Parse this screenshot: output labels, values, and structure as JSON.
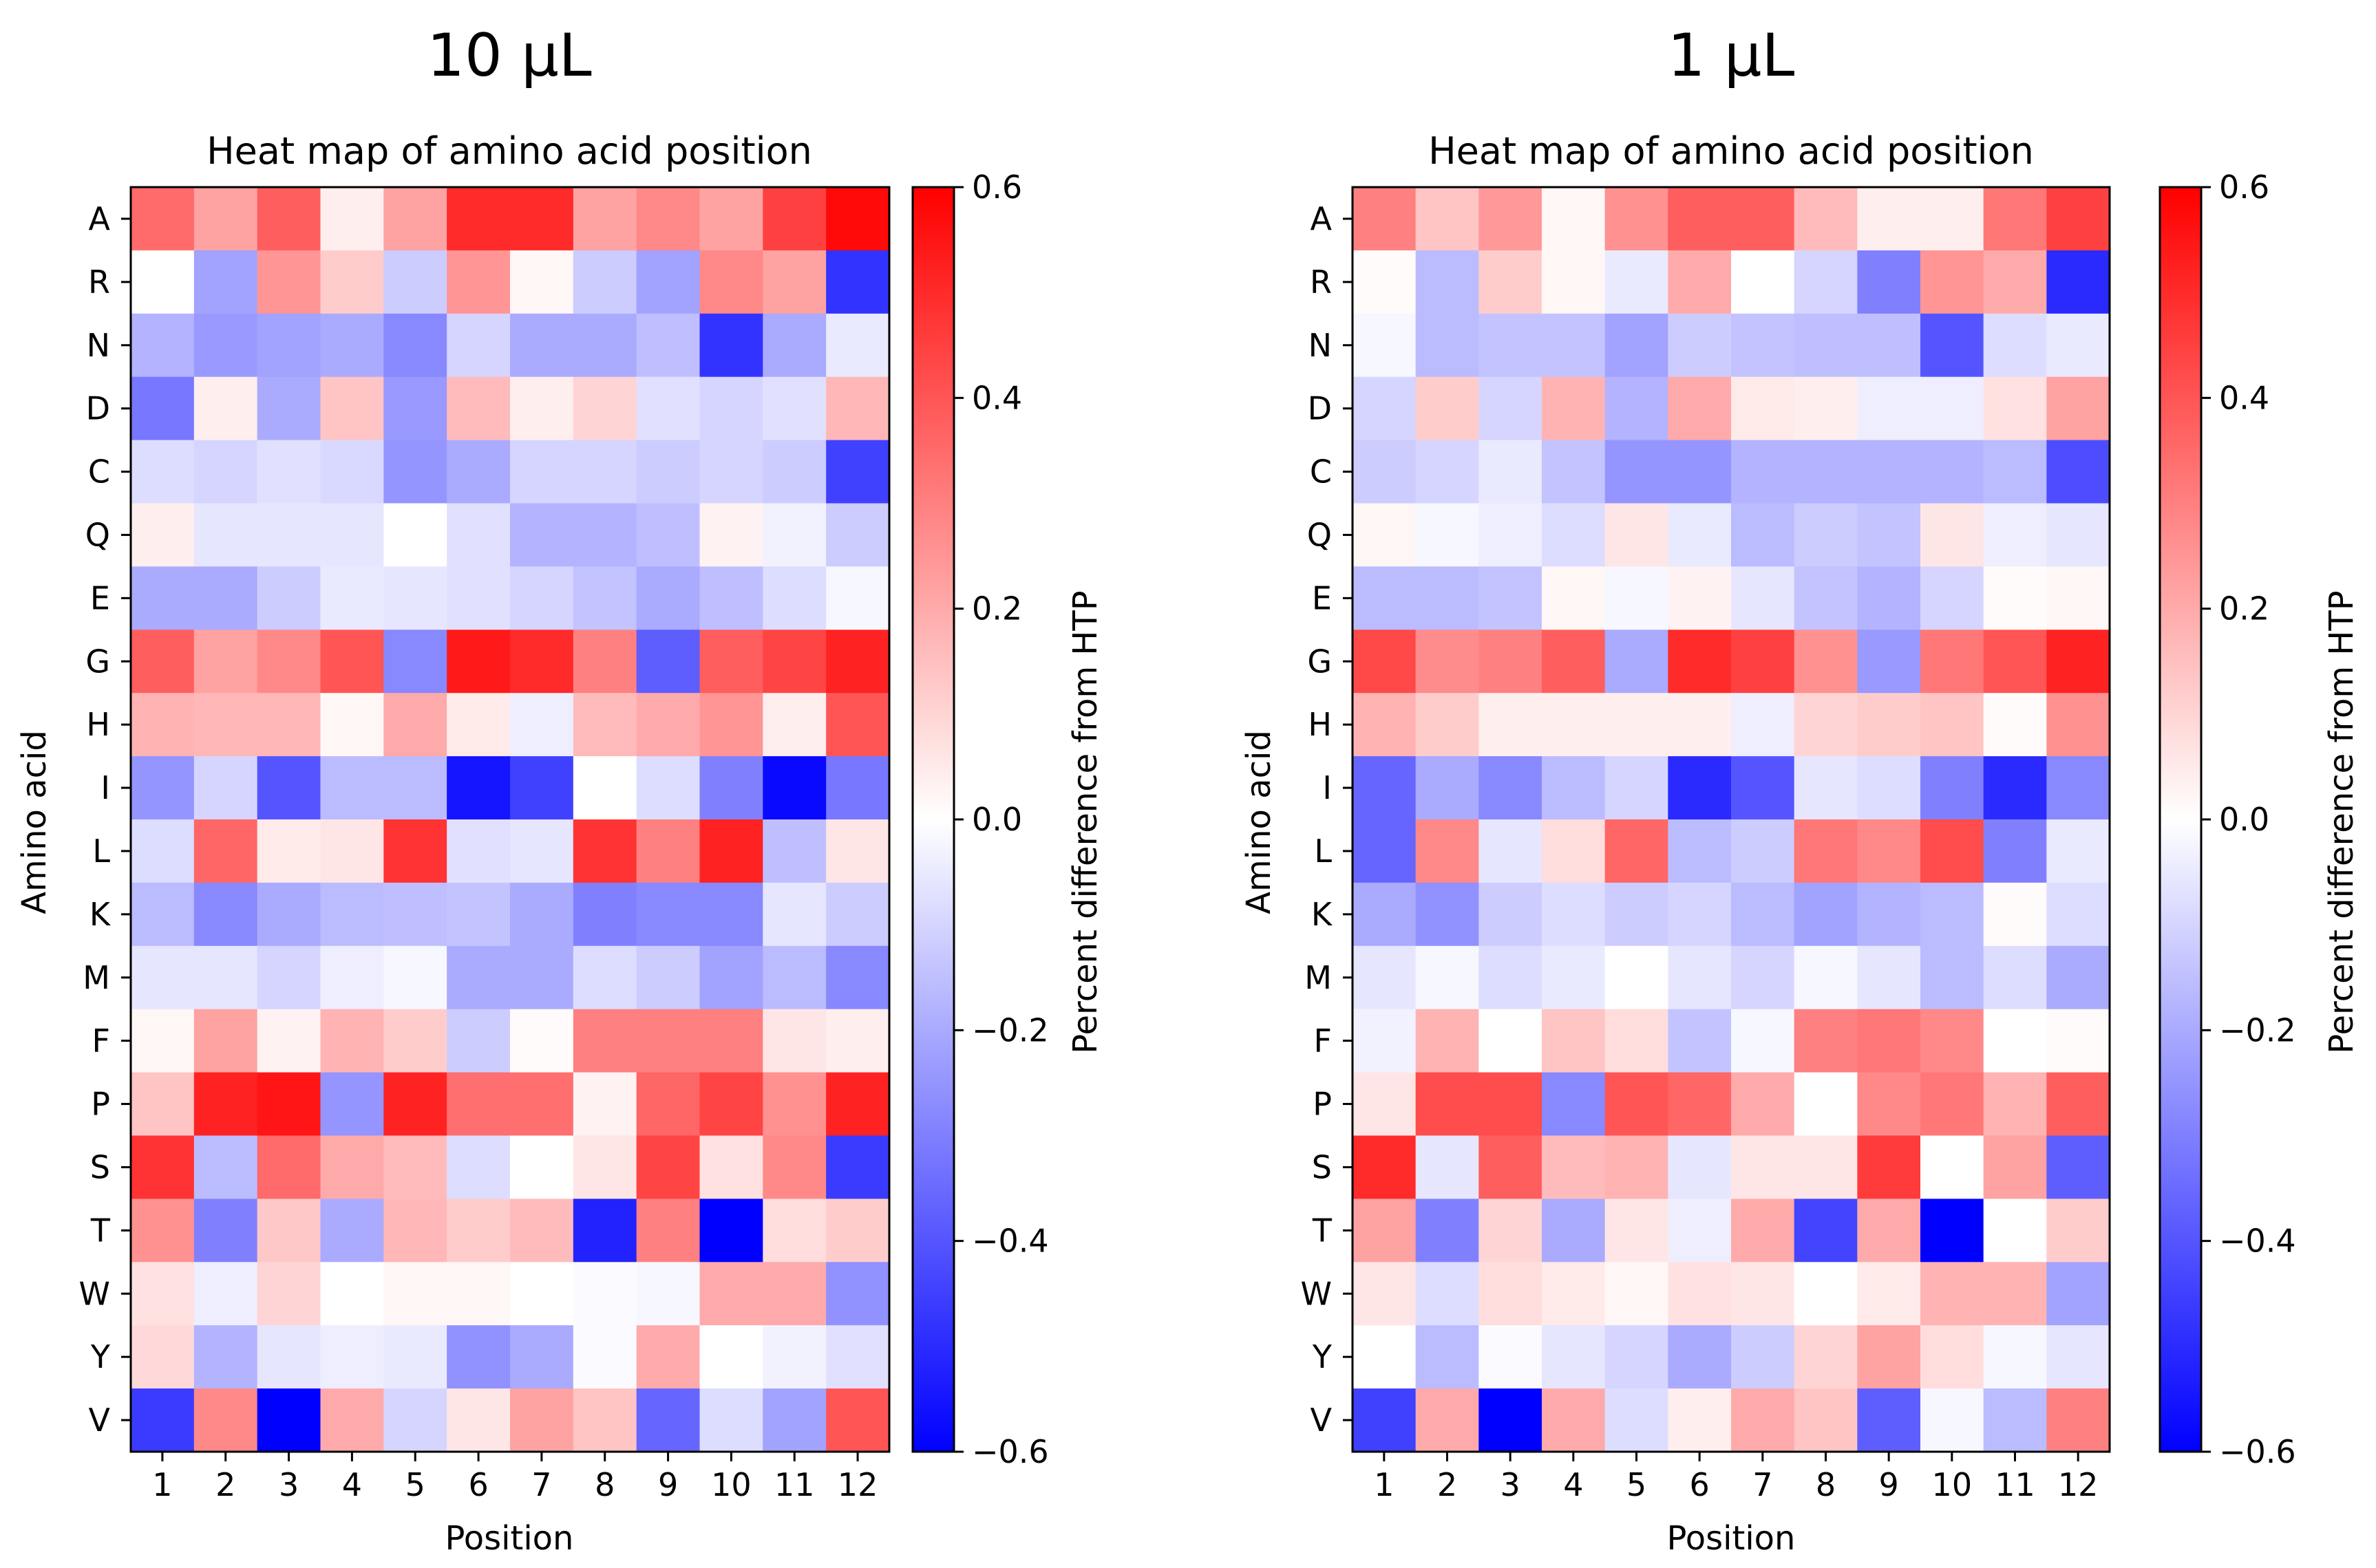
{
  "chart_data": [
    {
      "type": "heatmap",
      "panel_title": "10 μL",
      "title": "Heat map of amino acid position",
      "xlabel": "Position",
      "ylabel": "Amino acid",
      "colorbar_label": "Percent difference from HTP",
      "colorbar_ticks": [
        "0.6",
        "0.4",
        "0.2",
        "0.0",
        "−0.2",
        "−0.4",
        "−0.6"
      ],
      "vlim": [
        -0.6,
        0.6
      ],
      "colormap": [
        "#0000ff",
        "#ffffff",
        "#ff0000"
      ],
      "x": [
        "1",
        "2",
        "3",
        "4",
        "5",
        "6",
        "7",
        "8",
        "9",
        "10",
        "11",
        "12"
      ],
      "y": [
        "A",
        "R",
        "N",
        "D",
        "C",
        "Q",
        "E",
        "G",
        "H",
        "I",
        "L",
        "K",
        "M",
        "F",
        "P",
        "S",
        "T",
        "W",
        "Y",
        "V"
      ],
      "values": [
        [
          0.35,
          0.22,
          0.38,
          0.04,
          0.22,
          0.5,
          0.5,
          0.22,
          0.28,
          0.22,
          0.45,
          0.58
        ],
        [
          0.0,
          -0.22,
          0.25,
          0.12,
          -0.12,
          0.25,
          0.02,
          -0.12,
          -0.22,
          0.28,
          0.22,
          -0.48
        ],
        [
          -0.18,
          -0.24,
          -0.22,
          -0.2,
          -0.28,
          -0.1,
          -0.2,
          -0.2,
          -0.15,
          -0.48,
          -0.2,
          -0.05
        ],
        [
          -0.32,
          0.04,
          -0.2,
          0.14,
          -0.24,
          0.16,
          0.04,
          0.1,
          -0.07,
          -0.1,
          -0.07,
          0.17
        ],
        [
          -0.08,
          -0.1,
          -0.07,
          -0.09,
          -0.25,
          -0.2,
          -0.1,
          -0.1,
          -0.12,
          -0.1,
          -0.12,
          -0.45
        ],
        [
          0.04,
          -0.06,
          -0.06,
          -0.06,
          0.0,
          -0.07,
          -0.18,
          -0.18,
          -0.15,
          0.03,
          -0.03,
          -0.12
        ],
        [
          -0.2,
          -0.2,
          -0.12,
          -0.05,
          -0.06,
          -0.07,
          -0.1,
          -0.14,
          -0.2,
          -0.15,
          -0.08,
          -0.02
        ],
        [
          0.38,
          0.22,
          0.28,
          0.4,
          -0.28,
          0.54,
          0.5,
          0.3,
          -0.38,
          0.38,
          0.44,
          0.52
        ],
        [
          0.18,
          0.17,
          0.17,
          0.02,
          0.2,
          0.05,
          -0.04,
          0.16,
          0.2,
          0.25,
          0.04,
          0.4
        ],
        [
          -0.25,
          -0.1,
          -0.4,
          -0.16,
          -0.16,
          -0.55,
          -0.45,
          0.0,
          -0.08,
          -0.3,
          -0.58,
          -0.32
        ],
        [
          -0.08,
          0.36,
          0.05,
          0.06,
          0.48,
          -0.07,
          -0.06,
          0.48,
          0.3,
          0.52,
          -0.15,
          0.06
        ],
        [
          -0.16,
          -0.28,
          -0.2,
          -0.16,
          -0.15,
          -0.14,
          -0.2,
          -0.3,
          -0.28,
          -0.28,
          -0.06,
          -0.12
        ],
        [
          -0.06,
          -0.06,
          -0.1,
          -0.04,
          -0.02,
          -0.2,
          -0.2,
          -0.08,
          -0.12,
          -0.22,
          -0.16,
          -0.28
        ],
        [
          0.02,
          0.22,
          0.03,
          0.18,
          0.12,
          -0.12,
          0.01,
          0.3,
          0.3,
          0.3,
          0.06,
          0.04
        ],
        [
          0.14,
          0.52,
          0.55,
          -0.25,
          0.52,
          0.34,
          0.34,
          0.03,
          0.36,
          0.44,
          0.26,
          0.52
        ],
        [
          0.48,
          -0.16,
          0.35,
          0.2,
          0.16,
          -0.08,
          0.0,
          0.06,
          0.44,
          0.07,
          0.28,
          -0.46
        ],
        [
          0.26,
          -0.3,
          0.13,
          -0.2,
          0.17,
          0.12,
          0.16,
          -0.52,
          0.3,
          -0.62,
          0.08,
          0.12
        ],
        [
          0.07,
          -0.04,
          0.1,
          0.0,
          0.02,
          0.02,
          0.0,
          -0.01,
          -0.02,
          0.2,
          0.2,
          -0.26
        ],
        [
          0.09,
          -0.18,
          -0.06,
          -0.04,
          -0.05,
          -0.26,
          -0.2,
          -0.01,
          0.2,
          0.0,
          -0.03,
          -0.07
        ],
        [
          -0.46,
          0.28,
          -0.62,
          0.2,
          -0.1,
          0.06,
          0.22,
          0.14,
          -0.36,
          -0.08,
          -0.22,
          0.4
        ]
      ]
    },
    {
      "type": "heatmap",
      "panel_title": "1 μL",
      "title": "Heat map of amino acid position",
      "xlabel": "Position",
      "ylabel": "Amino acid",
      "colorbar_label": "Percent difference from HTP",
      "colorbar_ticks": [
        "0.6",
        "0.4",
        "0.2",
        "0.0",
        "−0.2",
        "−0.4",
        "−0.6"
      ],
      "vlim": [
        -0.6,
        0.6
      ],
      "colormap": [
        "#0000ff",
        "#ffffff",
        "#ff0000"
      ],
      "x": [
        "1",
        "2",
        "3",
        "4",
        "5",
        "6",
        "7",
        "8",
        "9",
        "10",
        "11",
        "12"
      ],
      "y": [
        "A",
        "R",
        "N",
        "D",
        "C",
        "Q",
        "E",
        "G",
        "H",
        "I",
        "L",
        "K",
        "M",
        "F",
        "P",
        "S",
        "T",
        "W",
        "Y",
        "V"
      ],
      "values": [
        [
          0.3,
          0.14,
          0.24,
          0.02,
          0.26,
          0.38,
          0.38,
          0.16,
          0.04,
          0.04,
          0.32,
          0.45
        ],
        [
          0.01,
          -0.16,
          0.12,
          0.02,
          -0.05,
          0.2,
          0.0,
          -0.1,
          -0.3,
          0.25,
          0.2,
          -0.5
        ],
        [
          -0.02,
          -0.16,
          -0.14,
          -0.14,
          -0.22,
          -0.12,
          -0.14,
          -0.15,
          -0.15,
          -0.4,
          -0.08,
          -0.05
        ],
        [
          -0.1,
          0.12,
          -0.1,
          0.18,
          -0.18,
          0.2,
          0.05,
          0.04,
          -0.04,
          -0.04,
          0.07,
          0.22
        ],
        [
          -0.12,
          -0.1,
          -0.05,
          -0.14,
          -0.25,
          -0.25,
          -0.18,
          -0.18,
          -0.18,
          -0.18,
          -0.16,
          -0.42
        ],
        [
          0.02,
          -0.02,
          -0.04,
          -0.08,
          0.06,
          -0.05,
          -0.16,
          -0.12,
          -0.14,
          0.06,
          -0.04,
          -0.06
        ],
        [
          -0.16,
          -0.16,
          -0.14,
          0.02,
          -0.02,
          0.03,
          -0.06,
          -0.14,
          -0.18,
          -0.1,
          0.01,
          0.02
        ],
        [
          0.43,
          0.27,
          0.3,
          0.38,
          -0.2,
          0.5,
          0.45,
          0.26,
          -0.24,
          0.32,
          0.4,
          0.52
        ],
        [
          0.18,
          0.12,
          0.04,
          0.04,
          0.04,
          0.04,
          -0.04,
          0.1,
          0.12,
          0.14,
          0.01,
          0.26
        ],
        [
          -0.36,
          -0.2,
          -0.28,
          -0.16,
          -0.1,
          -0.5,
          -0.4,
          -0.06,
          -0.08,
          -0.3,
          -0.5,
          -0.28
        ],
        [
          -0.36,
          0.28,
          -0.06,
          0.08,
          0.36,
          -0.16,
          -0.12,
          0.32,
          0.28,
          0.42,
          -0.3,
          -0.05
        ],
        [
          -0.2,
          -0.26,
          -0.12,
          -0.08,
          -0.12,
          -0.1,
          -0.16,
          -0.22,
          -0.18,
          -0.16,
          0.01,
          -0.08
        ],
        [
          -0.06,
          -0.02,
          -0.08,
          -0.05,
          0.0,
          -0.06,
          -0.1,
          -0.02,
          -0.06,
          -0.16,
          -0.08,
          -0.2
        ],
        [
          -0.03,
          0.18,
          0.0,
          0.14,
          0.08,
          -0.14,
          -0.02,
          0.3,
          0.32,
          0.28,
          0.0,
          0.01
        ],
        [
          0.06,
          0.42,
          0.42,
          -0.28,
          0.4,
          0.36,
          0.2,
          0.0,
          0.28,
          0.32,
          0.18,
          0.38
        ],
        [
          0.5,
          -0.06,
          0.38,
          0.16,
          0.18,
          -0.06,
          0.06,
          0.06,
          0.46,
          0.0,
          0.22,
          -0.38
        ],
        [
          0.22,
          -0.3,
          0.1,
          -0.2,
          0.06,
          -0.04,
          0.2,
          -0.44,
          0.2,
          -0.6,
          0.0,
          0.12
        ],
        [
          0.06,
          -0.08,
          0.08,
          0.05,
          0.02,
          0.07,
          0.06,
          0.0,
          0.05,
          0.18,
          0.18,
          -0.22
        ],
        [
          0.0,
          -0.16,
          -0.01,
          -0.06,
          -0.1,
          -0.2,
          -0.12,
          0.1,
          0.22,
          0.08,
          -0.02,
          -0.06
        ],
        [
          -0.45,
          0.2,
          -0.6,
          0.2,
          -0.08,
          0.04,
          0.2,
          0.14,
          -0.38,
          -0.02,
          -0.16,
          0.3
        ]
      ]
    }
  ]
}
